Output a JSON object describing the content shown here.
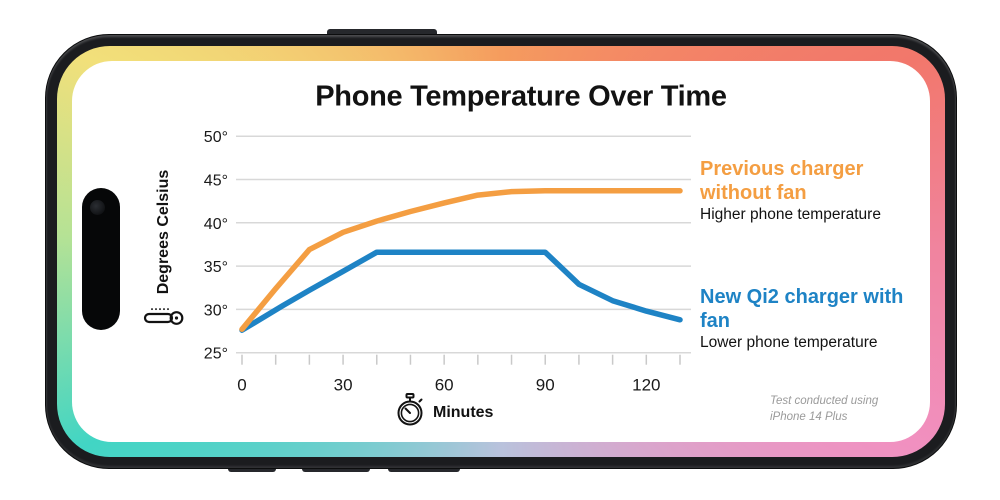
{
  "title": "Phone Temperature Over Time",
  "y_axis": {
    "label": "Degrees Celsius",
    "icon": "thermometer-icon",
    "tick_labels": [
      "50°",
      "45°",
      "40°",
      "35°",
      "30°",
      "25°"
    ]
  },
  "x_axis": {
    "label": "Minutes",
    "icon": "stopwatch-icon",
    "tick_labels": [
      "0",
      "30",
      "60",
      "90",
      "120"
    ]
  },
  "legend": {
    "previous_note": "Higher phone temperature",
    "new_note": "Lower phone temperature"
  },
  "footnote": {
    "line1": "Test conducted using",
    "line2": "iPhone 14 Plus"
  },
  "phone": {
    "bezel_gradient": {
      "top_left": "#f2e07a",
      "top_right": "#f2776b",
      "bottom_right": "#f190c0",
      "bottom_left": "#41d5c4",
      "top_center": "#f59c5e",
      "right_center": "#f0849f",
      "bottom_center": "#b9c2dc",
      "left_center": "#b5e295"
    },
    "frame_color": "#1b1c1f"
  },
  "chart_data": {
    "type": "line",
    "title": "Phone Temperature Over Time",
    "xlabel": "Minutes",
    "ylabel": "Degrees Celsius",
    "xlim": [
      0,
      130
    ],
    "ylim": [
      25,
      50
    ],
    "x_tick_step": 10,
    "x_labeled_ticks": [
      0,
      30,
      60,
      90,
      120
    ],
    "y_ticks": [
      50,
      45,
      40,
      35,
      30,
      25
    ],
    "grid": "horizontal",
    "grid_color": "#d8d8d8",
    "legend_position": "right",
    "series": [
      {
        "name": "Previous charger without fan",
        "subtitle": "Higher phone temperature",
        "color": "#F49E42",
        "points": [
          [
            0,
            27.7
          ],
          [
            10,
            32.4
          ],
          [
            20,
            36.9
          ],
          [
            30,
            38.9
          ],
          [
            40,
            40.2
          ],
          [
            50,
            41.3
          ],
          [
            60,
            42.3
          ],
          [
            70,
            43.2
          ],
          [
            80,
            43.6
          ],
          [
            90,
            43.7
          ],
          [
            130,
            43.7
          ]
        ]
      },
      {
        "name": "New Qi2 charger with fan",
        "subtitle": "Lower phone temperature",
        "color": "#1E83C5",
        "points": [
          [
            0,
            27.6
          ],
          [
            12,
            30.4
          ],
          [
            20,
            32.2
          ],
          [
            30,
            34.4
          ],
          [
            40,
            36.6
          ],
          [
            90,
            36.6
          ],
          [
            100,
            32.9
          ],
          [
            110,
            31.0
          ],
          [
            120,
            29.8
          ],
          [
            130,
            28.8
          ]
        ]
      }
    ]
  }
}
